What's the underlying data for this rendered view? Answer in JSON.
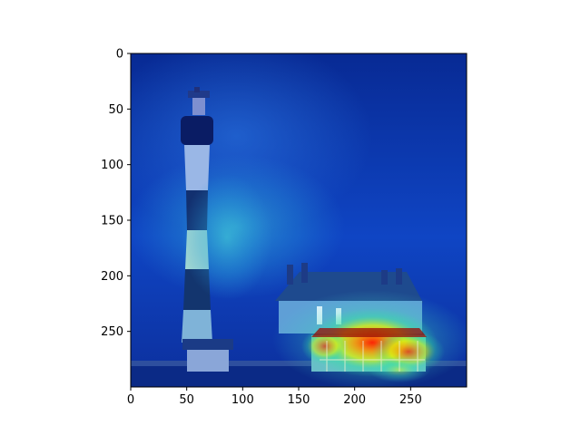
{
  "chart_data": {
    "type": "heatmap",
    "title": "",
    "xlabel": "",
    "ylabel": "",
    "image_width": 300,
    "image_height": 300,
    "xlim": [
      0,
      300
    ],
    "ylim": [
      300,
      0
    ],
    "x_ticks": [
      0,
      50,
      100,
      150,
      200,
      250
    ],
    "y_ticks": [
      0,
      50,
      100,
      150,
      200,
      250
    ],
    "colormap": "jet",
    "overlay_alpha": 0.55,
    "image_content": "grayscale photo of a striped lighthouse on the left and a two-storey house with a porch on the right",
    "heat_peaks": [
      {
        "x": 215,
        "y": 255,
        "intensity": 1.0
      },
      {
        "x": 250,
        "y": 260,
        "intensity": 0.8
      },
      {
        "x": 165,
        "y": 260,
        "intensity": 0.45
      },
      {
        "x": 240,
        "y": 275,
        "intensity": 0.55
      },
      {
        "x": 85,
        "y": 165,
        "intensity": 0.35
      },
      {
        "x": 230,
        "y": 285,
        "intensity": 0.45
      },
      {
        "x": 120,
        "y": 130,
        "intensity": 0.2
      }
    ],
    "grid": false
  }
}
